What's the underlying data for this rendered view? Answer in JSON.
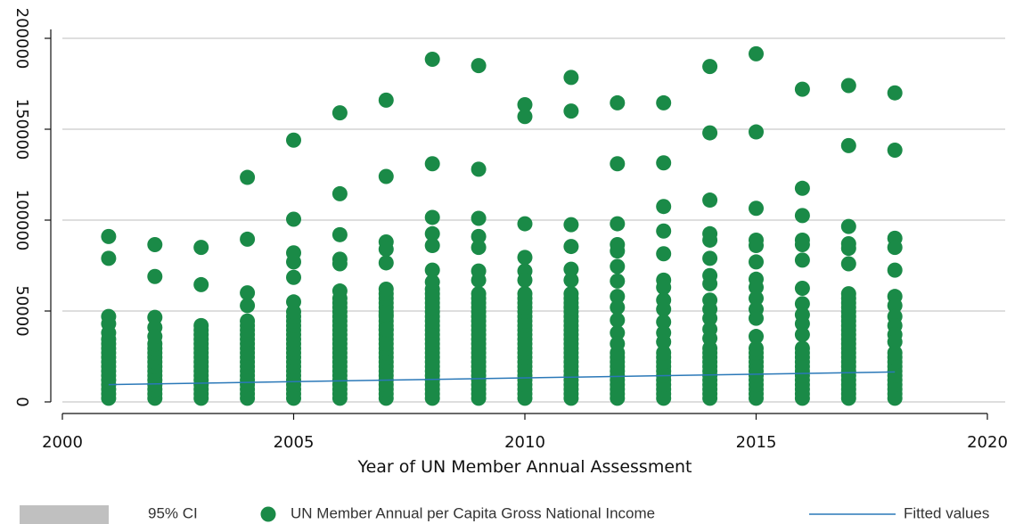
{
  "chart_data": {
    "type": "scatter",
    "title": "",
    "xlabel": "Year of UN Member Annual Assessment",
    "ylabel": "",
    "xlim": [
      2000,
      2020
    ],
    "ylim": [
      0,
      200000
    ],
    "x_ticks": [
      2000,
      2005,
      2010,
      2015,
      2020
    ],
    "y_ticks": [
      0,
      50000,
      100000,
      150000,
      200000
    ],
    "grid": true,
    "legend_position": "bottom",
    "legend": [
      {
        "label": "95% CI",
        "kind": "area",
        "color": "#c0c0c0"
      },
      {
        "label": "UN Member Annual per Capita Gross National Income",
        "kind": "marker",
        "color": "#1a8a47"
      },
      {
        "label": "Fitted values",
        "kind": "line",
        "color": "#2a78b8"
      }
    ],
    "colors": {
      "points": "#1a8a47",
      "fit": "#2a78b8",
      "ci": "#c0c0c0",
      "grid": "#bdbdbd",
      "axis": "#111111"
    },
    "series": [
      {
        "name": "UN Member Annual per Capita Gross National Income",
        "kind": "scatter",
        "points_by_year": [
          {
            "year": 2001,
            "dense_max": 35000,
            "values": [
              91000,
              79000,
              47000,
              43000,
              38000
            ]
          },
          {
            "year": 2002,
            "dense_max": 33000,
            "values": [
              86500,
              69000,
              46500,
              41000,
              36000
            ]
          },
          {
            "year": 2003,
            "dense_max": 42000,
            "values": [
              85000,
              64500
            ]
          },
          {
            "year": 2004,
            "dense_max": 46000,
            "values": [
              123500,
              89500,
              60000,
              53000
            ]
          },
          {
            "year": 2005,
            "dense_max": 50000,
            "values": [
              144000,
              100500,
              82000,
              77000,
              68500,
              55000
            ]
          },
          {
            "year": 2006,
            "dense_max": 57000,
            "values": [
              159000,
              114500,
              92000,
              78500,
              76000,
              61000
            ]
          },
          {
            "year": 2007,
            "dense_max": 63000,
            "values": [
              166000,
              124000,
              88000,
              84000,
              76500,
              48000,
              40000
            ]
          },
          {
            "year": 2008,
            "dense_max": 62000,
            "values": [
              188500,
              131000,
              101500,
              92500,
              86000,
              72500,
              66000
            ]
          },
          {
            "year": 2009,
            "dense_max": 60000,
            "values": [
              185000,
              128000,
              101000,
              91000,
              85000,
              72000,
              67000
            ]
          },
          {
            "year": 2010,
            "dense_max": 60000,
            "values": [
              163500,
              157000,
              98000,
              79500,
              72000,
              67000
            ]
          },
          {
            "year": 2011,
            "dense_max": 60000,
            "values": [
              178500,
              160000,
              97500,
              85500,
              73000,
              67000,
              52000
            ]
          },
          {
            "year": 2012,
            "dense_max": 27000,
            "values": [
              164500,
              131000,
              98000,
              86500,
              83000,
              74500,
              66500,
              58000,
              52000,
              45000,
              38000,
              32000
            ]
          },
          {
            "year": 2013,
            "dense_max": 27000,
            "values": [
              164500,
              131500,
              107500,
              94000,
              81500,
              67000,
              63000,
              56000,
              51000,
              44000,
              38000,
              33000
            ]
          },
          {
            "year": 2014,
            "dense_max": 30000,
            "values": [
              184500,
              148000,
              111000,
              92500,
              89000,
              79000,
              69500,
              65000,
              56000,
              51000,
              46000,
              40000,
              35000
            ]
          },
          {
            "year": 2015,
            "dense_max": 30000,
            "values": [
              191500,
              148500,
              106500,
              89000,
              86000,
              77000,
              67500,
              63000,
              57000,
              51000,
              46000,
              36000
            ]
          },
          {
            "year": 2016,
            "dense_max": 30000,
            "values": [
              172000,
              117500,
              102500,
              89000,
              86500,
              78000,
              62500,
              54000,
              48000,
              43000,
              37000
            ]
          },
          {
            "year": 2017,
            "dense_max": 60000,
            "values": [
              174000,
              141000,
              96500,
              87000,
              84500,
              76000
            ]
          },
          {
            "year": 2018,
            "dense_max": 27000,
            "values": [
              170000,
              138500,
              90000,
              85000,
              72500,
              58000,
              53000,
              47000,
              42000,
              37000,
              33000
            ]
          }
        ]
      },
      {
        "name": "Fitted values",
        "kind": "line",
        "x": [
          2001,
          2018
        ],
        "y": [
          9500,
          16500
        ]
      }
    ]
  }
}
